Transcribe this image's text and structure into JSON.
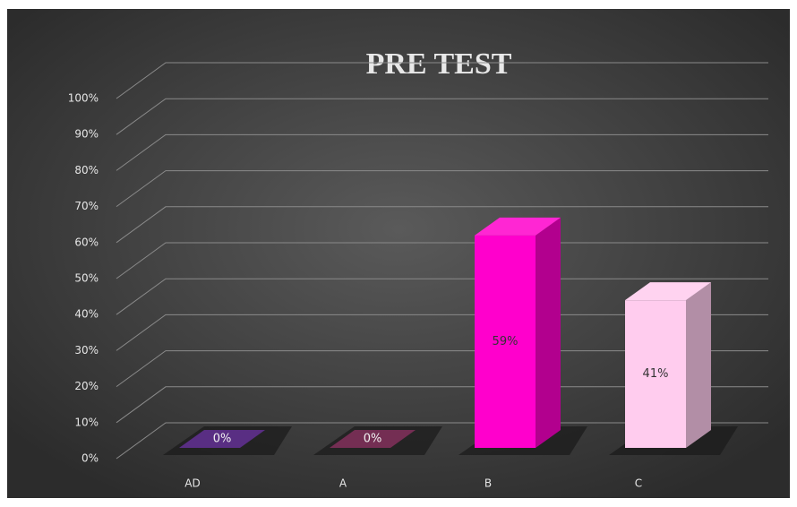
{
  "chart_data": {
    "type": "bar3d",
    "title": "PRE TEST",
    "categories": [
      "AD",
      "A",
      "B",
      "C"
    ],
    "values": [
      0,
      0,
      59,
      41
    ],
    "value_labels": [
      "0%",
      "0%",
      "59%",
      "41%"
    ],
    "colors": [
      "#3c0a6e",
      "#5c0a35",
      "#ff00cc",
      "#ffccee"
    ],
    "ylim": [
      0,
      100
    ],
    "yticks": [
      {
        "value": 0,
        "label": "0%"
      },
      {
        "value": 10,
        "label": "10%"
      },
      {
        "value": 20,
        "label": "20%"
      },
      {
        "value": 30,
        "label": "30%"
      },
      {
        "value": 40,
        "label": "40%"
      },
      {
        "value": 50,
        "label": "50%"
      },
      {
        "value": 60,
        "label": "60%"
      },
      {
        "value": 70,
        "label": "70%"
      },
      {
        "value": 80,
        "label": "80%"
      },
      {
        "value": 90,
        "label": "90%"
      },
      {
        "value": 100,
        "label": "100%"
      }
    ],
    "grid": true
  }
}
